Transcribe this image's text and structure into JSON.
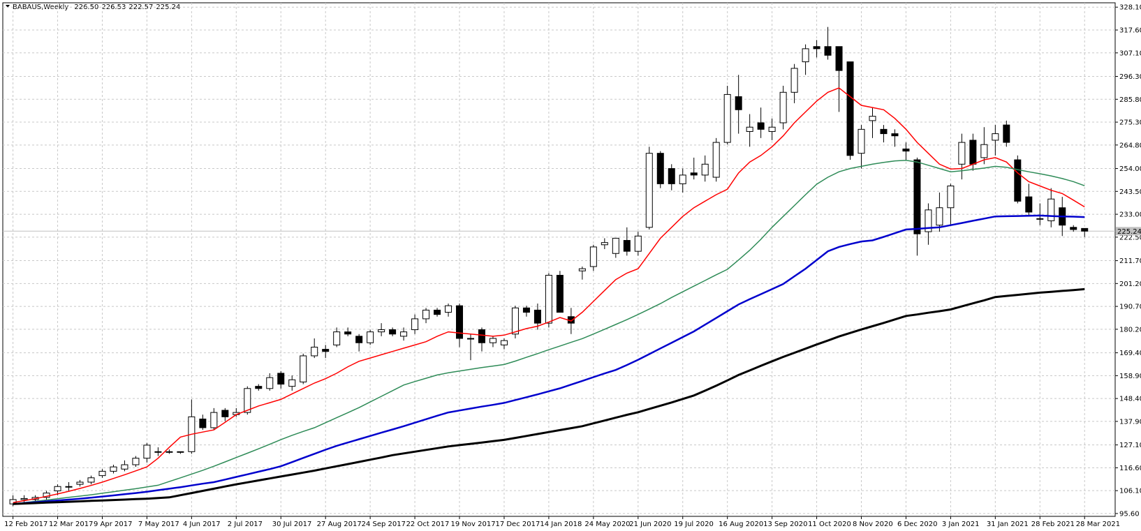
{
  "chart_data": {
    "type": "candlestick",
    "title": "BABAUS,Weekly",
    "ohlc_labels": [
      "226.50",
      "226.53",
      "222.57",
      "225.24"
    ],
    "current_price": {
      "value": 225.24,
      "label": "225.24"
    },
    "ylim": [
      94.3,
      330.1
    ],
    "yticks": [
      {
        "value": 95.6,
        "label": "95.60"
      },
      {
        "value": 106.1,
        "label": "106.10"
      },
      {
        "value": 116.6,
        "label": "116.60"
      },
      {
        "value": 127.1,
        "label": "127.10"
      },
      {
        "value": 137.9,
        "label": "137.90"
      },
      {
        "value": 148.4,
        "label": "148.40"
      },
      {
        "value": 158.9,
        "label": "158.90"
      },
      {
        "value": 169.4,
        "label": "169.40"
      },
      {
        "value": 180.2,
        "label": "180.20"
      },
      {
        "value": 190.7,
        "label": "190.70"
      },
      {
        "value": 201.2,
        "label": "201.20"
      },
      {
        "value": 211.7,
        "label": "211.70"
      },
      {
        "value": 222.5,
        "label": "222.50"
      },
      {
        "value": 233,
        "label": "233.00"
      },
      {
        "value": 243.5,
        "label": "243.50"
      },
      {
        "value": 254,
        "label": "254.00"
      },
      {
        "value": 264.8,
        "label": "264.80"
      },
      {
        "value": 275.3,
        "label": "275.30"
      },
      {
        "value": 285.8,
        "label": "285.80"
      },
      {
        "value": 296.3,
        "label": "296.30"
      },
      {
        "value": 307.1,
        "label": "307.10"
      },
      {
        "value": 317.6,
        "label": "317.60"
      },
      {
        "value": 328.1,
        "label": "328.10"
      }
    ],
    "grid": true,
    "up_color": "#ffffff",
    "down_color": "#000000",
    "categories": [
      "12 Feb 2017",
      null,
      null,
      null,
      "12 Mar 2017",
      null,
      null,
      null,
      "9 Apr 2017",
      null,
      null,
      null,
      "7 May 2017",
      null,
      null,
      null,
      "4 Jun 2017",
      null,
      null,
      null,
      "2 Jul 2017",
      null,
      null,
      null,
      "30 Jul 2017",
      null,
      null,
      null,
      "27 Aug 2017",
      null,
      null,
      null,
      "24 Sep 2017",
      null,
      null,
      null,
      "22 Oct 2017",
      null,
      null,
      null,
      "19 Nov 2017",
      null,
      null,
      null,
      "17 Dec 2017",
      null,
      null,
      null,
      "14 Jan 2018",
      null,
      null,
      null,
      "24 May 2020",
      null,
      null,
      null,
      "21 Jun 2020",
      null,
      null,
      null,
      "19 Jul 2020",
      null,
      null,
      null,
      "16 Aug 2020",
      null,
      null,
      null,
      "13 Sep 2020",
      null,
      null,
      null,
      "11 Oct 2020",
      null,
      null,
      null,
      "8 Nov 2020",
      null,
      null,
      null,
      "6 Dec 2020",
      null,
      null,
      null,
      "3 Jan 2021",
      null,
      null,
      null,
      "31 Jan 2021",
      null,
      null,
      null,
      "28 Feb 2021",
      null,
      null,
      null,
      "28 Mar 2021"
    ],
    "ohlc": [
      [
        100,
        104,
        99,
        102
      ],
      [
        102,
        104,
        100,
        102.5
      ],
      [
        102,
        104,
        101,
        103
      ],
      [
        103,
        106,
        102,
        105
      ],
      [
        106,
        109,
        104,
        108
      ],
      [
        108,
        110,
        106,
        108
      ],
      [
        109,
        111,
        108,
        110
      ],
      [
        110,
        113,
        109,
        112
      ],
      [
        113,
        116,
        112,
        115
      ],
      [
        115,
        118,
        114,
        117
      ],
      [
        116,
        120,
        115,
        118
      ],
      [
        118,
        122,
        117,
        121
      ],
      [
        121,
        128,
        119,
        127
      ],
      [
        124,
        126,
        122,
        124
      ],
      [
        124,
        125,
        123,
        124
      ],
      [
        124,
        124,
        123,
        124
      ],
      [
        124,
        148,
        123,
        140
      ],
      [
        139,
        141,
        134,
        135
      ],
      [
        135,
        144,
        134,
        142
      ],
      [
        143,
        144,
        138,
        140
      ],
      [
        141,
        144,
        140,
        142
      ],
      [
        142,
        154,
        141,
        153
      ],
      [
        154,
        155,
        152,
        153
      ],
      [
        153,
        160,
        152,
        158
      ],
      [
        160,
        161,
        153,
        155
      ],
      [
        154,
        159,
        152,
        157
      ],
      [
        156,
        169,
        155,
        168
      ],
      [
        168,
        176,
        167,
        172
      ],
      [
        171,
        173,
        167,
        170
      ],
      [
        173,
        181,
        172,
        179
      ],
      [
        179,
        181,
        177,
        178
      ],
      [
        177,
        178,
        170,
        174
      ],
      [
        174,
        180,
        173,
        179
      ],
      [
        179,
        183,
        177,
        180
      ],
      [
        180,
        181,
        177,
        178
      ],
      [
        177,
        181,
        175,
        179
      ],
      [
        180,
        187,
        178,
        185
      ],
      [
        185,
        190,
        183,
        189
      ],
      [
        189,
        190,
        186,
        187
      ],
      [
        188,
        192,
        186,
        191
      ],
      [
        191,
        192,
        172,
        176
      ],
      [
        176,
        178,
        166,
        176
      ],
      [
        180,
        181,
        170,
        174
      ],
      [
        174,
        177,
        172,
        176
      ],
      [
        173,
        176,
        171,
        175
      ],
      [
        178,
        191,
        176,
        190
      ],
      [
        190,
        191,
        186,
        188
      ],
      [
        189,
        192,
        180,
        183
      ],
      [
        183,
        206,
        181,
        205
      ],
      [
        205,
        207,
        188,
        188
      ],
      [
        186,
        190,
        178,
        183
      ],
      [
        207,
        209,
        203,
        208
      ],
      [
        209,
        219,
        207,
        218
      ],
      [
        219,
        222,
        217,
        220
      ],
      [
        215,
        222,
        213,
        222
      ],
      [
        221,
        227,
        214,
        216
      ],
      [
        216,
        225,
        214,
        223
      ],
      [
        227,
        264,
        226,
        261
      ],
      [
        261,
        262,
        245,
        247
      ],
      [
        254,
        256,
        244,
        247
      ],
      [
        247,
        254,
        243,
        251
      ],
      [
        252,
        259,
        249,
        251
      ],
      [
        251,
        260,
        248,
        256
      ],
      [
        250,
        268,
        248,
        266
      ],
      [
        266,
        292,
        265,
        288
      ],
      [
        287,
        297,
        270,
        281
      ],
      [
        271,
        279,
        264,
        273
      ],
      [
        275,
        282,
        268,
        272
      ],
      [
        271,
        277,
        267,
        273
      ],
      [
        275,
        292,
        272,
        289
      ],
      [
        289,
        302,
        284,
        300
      ],
      [
        303,
        311,
        297,
        309
      ],
      [
        310,
        313,
        305,
        309
      ],
      [
        310,
        319,
        304,
        306
      ],
      [
        310,
        310,
        280,
        299
      ],
      [
        303,
        303,
        258,
        260
      ],
      [
        261,
        274,
        254,
        272
      ],
      [
        276,
        282,
        268,
        278
      ],
      [
        272,
        274,
        266,
        270
      ],
      [
        270,
        272,
        264,
        269
      ],
      [
        263,
        266,
        258,
        262
      ],
      [
        258,
        259,
        214,
        224
      ],
      [
        225,
        238,
        219,
        235
      ],
      [
        228,
        243,
        225,
        236
      ],
      [
        236,
        247,
        228,
        246
      ],
      [
        256,
        270,
        249,
        266
      ],
      [
        267,
        270,
        253,
        256
      ],
      [
        259,
        273,
        256,
        265
      ],
      [
        267,
        274,
        260,
        270
      ],
      [
        274,
        276,
        264,
        266
      ],
      [
        258,
        260,
        238,
        239
      ],
      [
        241,
        247,
        232,
        234
      ],
      [
        231,
        238,
        228,
        231
      ],
      [
        230,
        245,
        227,
        240
      ],
      [
        236,
        241,
        223,
        228
      ],
      [
        227,
        228,
        225,
        226
      ],
      [
        226.5,
        226.53,
        222.57,
        225.24
      ]
    ],
    "series": [
      {
        "color": "#ff0000",
        "width": 1.5,
        "values": [
          100.6,
          101.5,
          102.4,
          103.5,
          104.6,
          105.8,
          107.1,
          108.5,
          110,
          111.7,
          113.4,
          115.2,
          117,
          121,
          126,
          130.7,
          132,
          133,
          134,
          137.5,
          141,
          143,
          145,
          146.5,
          148,
          150.5,
          153,
          155.5,
          157.5,
          160,
          163,
          165.5,
          167,
          168.5,
          170,
          171.5,
          173,
          174.5,
          177,
          179,
          178.5,
          178,
          177.5,
          177,
          177.5,
          179,
          180.5,
          181.6,
          183.5,
          185.6,
          184,
          188,
          193,
          198,
          203,
          206,
          208,
          215,
          222,
          227,
          232,
          236,
          239,
          242,
          244.5,
          252,
          257,
          260,
          264,
          269,
          275,
          280,
          285,
          289,
          291,
          287,
          283,
          282,
          281,
          277,
          272,
          266,
          261,
          256,
          253.8,
          254,
          256,
          258,
          259,
          257,
          252,
          248,
          246,
          244,
          242.5,
          239.5,
          236.4
        ]
      },
      {
        "color": "#2e8b57",
        "width": 1.5,
        "values": [
          100,
          100.6,
          101.2,
          101.8,
          102.4,
          103,
          103.6,
          104.2,
          104.9,
          105.6,
          106.3,
          107,
          107.8,
          108.6,
          110.3,
          112,
          113.7,
          115.4,
          117.3,
          119.3,
          121.3,
          123.3,
          125.3,
          127.4,
          129.5,
          131.5,
          133.3,
          135,
          137.3,
          139.6,
          141.9,
          144.2,
          146.8,
          149.4,
          152,
          154.6,
          156.2,
          157.7,
          159.2,
          160.2,
          161,
          161.8,
          162.6,
          163.3,
          164,
          165.6,
          167.3,
          169,
          170.8,
          172.5,
          174.2,
          175.9,
          178,
          180.2,
          182.4,
          184.6,
          187,
          189.5,
          192,
          194.8,
          197.4,
          200,
          202.6,
          205.2,
          207.7,
          212,
          216.5,
          221.5,
          227,
          232,
          237,
          242,
          246.8,
          250,
          252.5,
          254,
          255,
          256,
          256.8,
          257.5,
          257.8,
          257,
          255.5,
          254,
          252.5,
          253,
          253.6,
          254.2,
          255,
          254.6,
          253.5,
          252.5,
          251.6,
          250.6,
          249.4,
          248,
          246.1
        ]
      },
      {
        "color": "#0000cd",
        "width": 2.5,
        "values": [
          100,
          100.4,
          100.8,
          101.2,
          101.6,
          102,
          102.4,
          102.9,
          103.4,
          103.9,
          104.5,
          105,
          105.6,
          106.3,
          107,
          107.7,
          108.5,
          109.3,
          110,
          111.2,
          112.4,
          113.6,
          114.8,
          116,
          117.3,
          119.2,
          121.1,
          123,
          124.9,
          126.7,
          128.2,
          129.7,
          131.2,
          132.7,
          134.2,
          135.7,
          137.3,
          138.9,
          140.5,
          142,
          142.9,
          143.8,
          144.7,
          145.5,
          146.4,
          147.7,
          149,
          150.3,
          151.7,
          153.1,
          154.8,
          156.5,
          158.2,
          159.9,
          161.5,
          163.8,
          166.2,
          168.8,
          171.4,
          174,
          176.6,
          179.2,
          182.3,
          185.4,
          188.5,
          191.6,
          194,
          196.3,
          198.6,
          201,
          204.5,
          208,
          212,
          216,
          218,
          219.3,
          220.5,
          221,
          222.6,
          224.3,
          226,
          226.3,
          226.7,
          227,
          228,
          229,
          230,
          231,
          232,
          232.1,
          232.2,
          232.3,
          232.4,
          232.2,
          232,
          231.9,
          231.7
        ]
      },
      {
        "color": "#000000",
        "width": 3,
        "values": [
          100,
          100.2,
          100.4,
          100.6,
          100.8,
          101,
          101.2,
          101.4,
          101.6,
          101.8,
          102,
          102.2,
          102.4,
          102.7,
          103,
          104,
          105,
          106,
          107,
          108,
          109,
          109.9,
          110.8,
          111.7,
          112.6,
          113.5,
          114.4,
          115.3,
          116.3,
          117.3,
          118.3,
          119.3,
          120.3,
          121.3,
          122.4,
          123.2,
          124,
          124.8,
          125.6,
          126.4,
          127,
          127.6,
          128.2,
          128.8,
          129.4,
          130.3,
          131.2,
          132.1,
          133,
          133.9,
          134.8,
          135.7,
          137,
          138.3,
          139.6,
          140.9,
          142.1,
          143.6,
          145.1,
          146.6,
          148.2,
          149.8,
          152,
          154.3,
          156.7,
          159.2,
          161.3,
          163.4,
          165.5,
          167.5,
          169.4,
          171.3,
          173.2,
          175,
          176.9,
          178.5,
          180.1,
          181.6,
          183.1,
          184.7,
          186.3,
          187,
          187.8,
          188.5,
          189.3,
          190.7,
          192.1,
          193.5,
          195,
          195.5,
          196,
          196.5,
          197,
          197.4,
          197.8,
          198.2,
          198.6
        ]
      }
    ]
  }
}
